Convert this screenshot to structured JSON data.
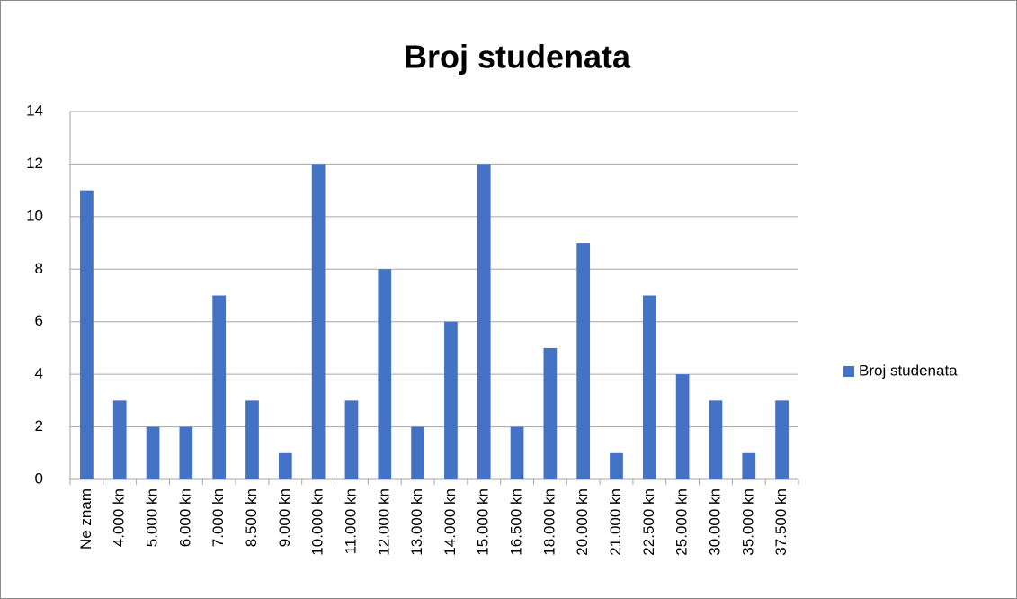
{
  "chart_data": {
    "type": "bar",
    "title": "Broj studenata",
    "categories": [
      "Ne znam",
      "4.000 kn",
      "5.000 kn",
      "6.000 kn",
      "7.000 kn",
      "8.500 kn",
      "9.000 kn",
      "10.000 kn",
      "11.000 kn",
      "12.000 kn",
      "13.000 kn",
      "14.000 kn",
      "15.000 kn",
      "16.500 kn",
      "18.000 kn",
      "20.000 kn",
      "21.000 kn",
      "22.500 kn",
      "25.000 kn",
      "30.000 kn",
      "35.000 kn",
      "37.500 kn"
    ],
    "series": [
      {
        "name": "Broj studenata",
        "color": "#4472c4",
        "values": [
          11,
          3,
          2,
          2,
          7,
          3,
          1,
          12,
          3,
          8,
          2,
          6,
          12,
          2,
          5,
          9,
          1,
          7,
          4,
          3,
          1,
          3
        ]
      }
    ],
    "ylim": [
      0,
      14
    ],
    "yticks": [
      0,
      2,
      4,
      6,
      8,
      10,
      12,
      14
    ],
    "grid": true,
    "legend": "right"
  }
}
